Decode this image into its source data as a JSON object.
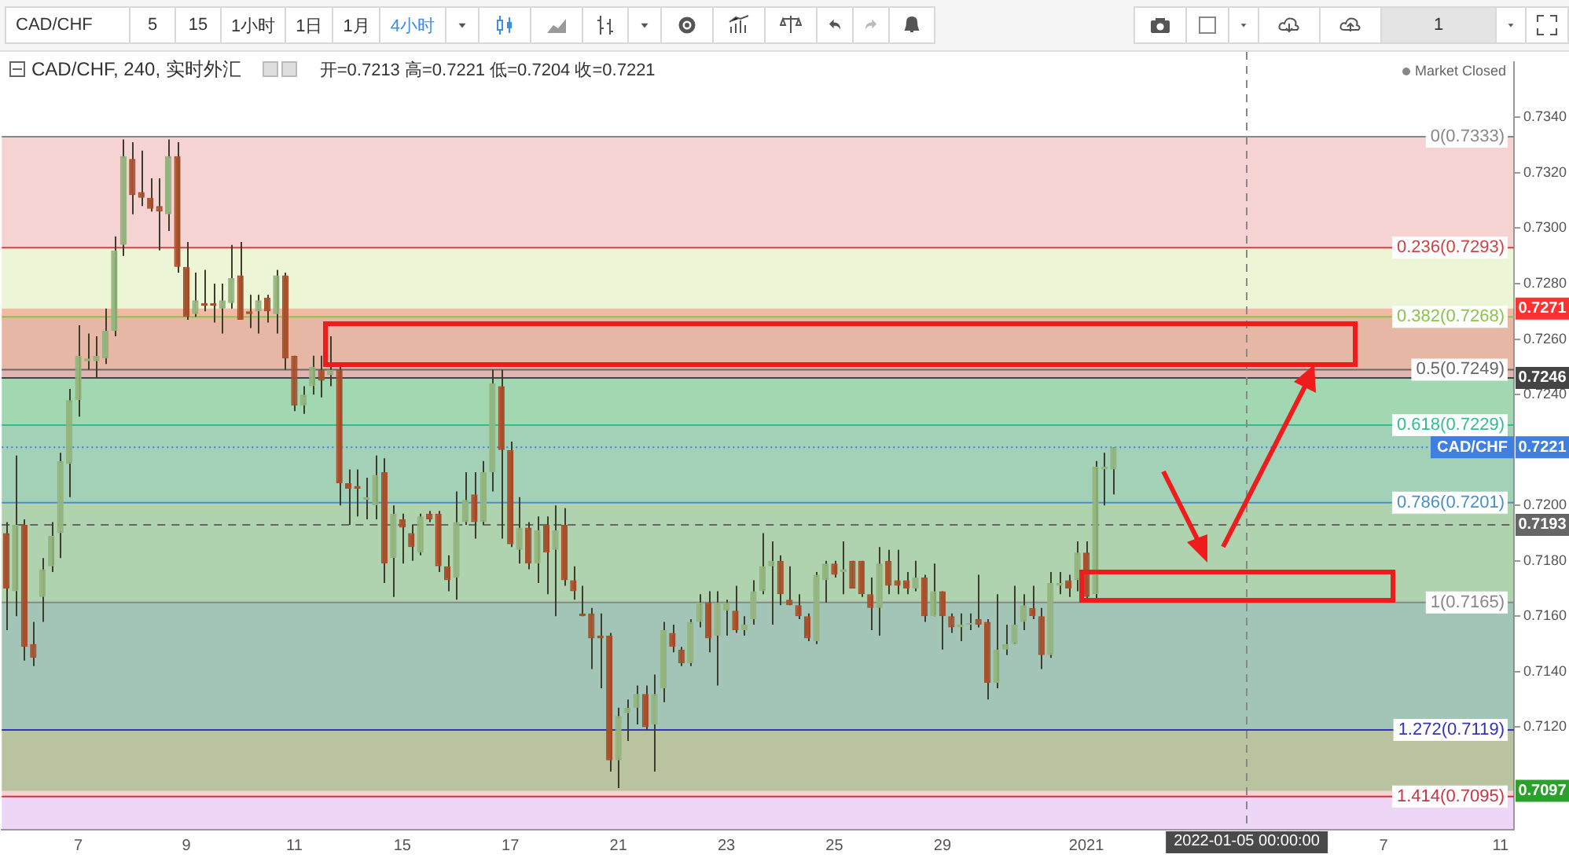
{
  "chart_data": {
    "type": "candlestick",
    "title": "CAD/CHF, 240, 实时外汇",
    "subtitle": "开=0.7213 高=0.7221 低=0.7204 收=0.7221",
    "annotations": [
      "CAD/CHF",
      "5",
      "15",
      "1小时",
      "1日",
      "1月",
      "4小时",
      "1",
      "Market Closed",
      "2022-01-05 00:00:00",
      {
        "text": "0.7271",
        "y": 0.7271
      },
      {
        "text": "0.7246",
        "y": 0.7246
      },
      {
        "text": "0.7221",
        "y": 0.7221
      },
      {
        "text": "CAD/CHF",
        "y": 0.7221
      },
      {
        "text": "0.7193",
        "y": 0.7193
      },
      {
        "text": "0.7097",
        "y": 0.7097
      }
    ],
    "categories": [
      null,
      null,
      null,
      null,
      null,
      null,
      null,
      null,
      "7",
      null,
      null,
      null,
      null,
      null,
      null,
      null,
      null,
      null,
      null,
      null,
      "9",
      null,
      null,
      null,
      null,
      null,
      null,
      null,
      null,
      null,
      null,
      null,
      "11",
      null,
      null,
      null,
      null,
      null,
      null,
      null,
      null,
      null,
      null,
      null,
      "15",
      null,
      null,
      null,
      null,
      null,
      null,
      null,
      null,
      null,
      null,
      null,
      "17",
      null,
      null,
      null,
      null,
      null,
      null,
      null,
      null,
      null,
      null,
      null,
      "21",
      null,
      null,
      null,
      null,
      null,
      null,
      null,
      null,
      null,
      null,
      null,
      "23",
      null,
      null,
      null,
      null,
      null,
      null,
      null,
      null,
      null,
      null,
      null,
      "25",
      null,
      null,
      null,
      null,
      null,
      null,
      null,
      null,
      null,
      null,
      null,
      "29",
      null,
      null,
      null,
      null,
      null,
      null,
      null,
      null,
      null,
      null,
      null,
      null,
      null,
      null,
      null,
      "2021",
      null,
      null,
      null,
      null,
      null,
      null,
      null,
      null,
      null,
      null,
      null,
      null,
      null,
      null,
      null,
      null,
      null,
      null,
      null,
      null,
      null,
      null,
      null,
      null,
      null,
      null,
      null,
      null,
      null,
      null,
      null,
      null,
      "7",
      null,
      null,
      null,
      null,
      null,
      null,
      null,
      null,
      null,
      null,
      null,
      null,
      "11",
      null
    ],
    "ohlc": [
      [
        0.719,
        0.7194,
        0.7155,
        0.717
      ],
      [
        0.7169,
        0.7218,
        0.716,
        0.7193
      ],
      [
        0.7193,
        0.7195,
        0.7144,
        0.7149
      ],
      [
        0.715,
        0.7158,
        0.7142,
        0.7145
      ],
      [
        0.7167,
        0.7181,
        0.7158,
        0.7177
      ],
      [
        0.7178,
        0.7194,
        0.7176,
        0.7189
      ],
      [
        0.719,
        0.7219,
        0.7181,
        0.7216
      ],
      [
        0.7215,
        0.7242,
        0.7203,
        0.7238
      ],
      [
        0.7238,
        0.7265,
        0.7232,
        0.7254
      ],
      [
        0.7252,
        0.7262,
        0.7249,
        0.7253
      ],
      [
        0.7252,
        0.7261,
        0.7246,
        0.7254
      ],
      [
        0.7253,
        0.7271,
        0.7251,
        0.7263
      ],
      [
        0.7263,
        0.7297,
        0.7261,
        0.7292
      ],
      [
        0.7294,
        0.7332,
        0.729,
        0.7326
      ],
      [
        0.7325,
        0.7331,
        0.7305,
        0.7312
      ],
      [
        0.7313,
        0.7328,
        0.7308,
        0.7311
      ],
      [
        0.7311,
        0.7318,
        0.7306,
        0.7307
      ],
      [
        0.7308,
        0.7318,
        0.7292,
        0.7306
      ],
      [
        0.7305,
        0.7332,
        0.7299,
        0.7326
      ],
      [
        0.7326,
        0.7331,
        0.7284,
        0.7286
      ],
      [
        0.7286,
        0.7295,
        0.7267,
        0.7268
      ],
      [
        0.7269,
        0.7284,
        0.7268,
        0.7274
      ],
      [
        0.7273,
        0.7285,
        0.727,
        0.7272
      ],
      [
        0.7273,
        0.728,
        0.7266,
        0.7272
      ],
      [
        0.7271,
        0.728,
        0.7262,
        0.7274
      ],
      [
        0.7273,
        0.7294,
        0.7271,
        0.7282
      ],
      [
        0.7283,
        0.7295,
        0.7267,
        0.7267
      ],
      [
        0.727,
        0.7276,
        0.7264,
        0.7269
      ],
      [
        0.727,
        0.7276,
        0.7262,
        0.7274
      ],
      [
        0.7275,
        0.7276,
        0.7266,
        0.727
      ],
      [
        0.7269,
        0.7285,
        0.7262,
        0.7283
      ],
      [
        0.7283,
        0.7284,
        0.7249,
        0.7253
      ],
      [
        0.7254,
        0.7254,
        0.7234,
        0.7236
      ],
      [
        0.7236,
        0.7243,
        0.7233,
        0.724
      ],
      [
        0.7243,
        0.7254,
        0.724,
        0.725
      ],
      [
        0.7249,
        0.7254,
        0.7239,
        0.7245
      ],
      [
        0.7247,
        0.7261,
        0.7243,
        0.7249
      ],
      [
        0.7249,
        0.725,
        0.72,
        0.7208
      ],
      [
        0.7208,
        0.7213,
        0.7193,
        0.7206
      ],
      [
        0.7207,
        0.7213,
        0.7196,
        0.7206
      ],
      [
        0.7202,
        0.721,
        0.7195,
        0.7203
      ],
      [
        0.72,
        0.7218,
        0.7195,
        0.7211
      ],
      [
        0.7212,
        0.7217,
        0.7172,
        0.7179
      ],
      [
        0.7181,
        0.72,
        0.7167,
        0.7197
      ],
      [
        0.7195,
        0.7197,
        0.7179,
        0.7192
      ],
      [
        0.719,
        0.7193,
        0.718,
        0.7185
      ],
      [
        0.7183,
        0.7197,
        0.7182,
        0.7196
      ],
      [
        0.7197,
        0.7198,
        0.7194,
        0.7195
      ],
      [
        0.7197,
        0.7198,
        0.7176,
        0.7178
      ],
      [
        0.7178,
        0.7182,
        0.7169,
        0.7173
      ],
      [
        0.7174,
        0.7205,
        0.7166,
        0.7194
      ],
      [
        0.7194,
        0.7212,
        0.7193,
        0.7202
      ],
      [
        0.7204,
        0.7212,
        0.7188,
        0.7194
      ],
      [
        0.7194,
        0.7216,
        0.7193,
        0.7212
      ],
      [
        0.7212,
        0.7249,
        0.7205,
        0.7244
      ],
      [
        0.7243,
        0.7249,
        0.7188,
        0.722
      ],
      [
        0.722,
        0.7223,
        0.7185,
        0.7186
      ],
      [
        0.7184,
        0.7203,
        0.7179,
        0.7192
      ],
      [
        0.7192,
        0.7194,
        0.7177,
        0.7179
      ],
      [
        0.7179,
        0.7196,
        0.7172,
        0.7191
      ],
      [
        0.7193,
        0.7196,
        0.7168,
        0.7183
      ],
      [
        0.7184,
        0.72,
        0.716,
        0.7191
      ],
      [
        0.7193,
        0.7199,
        0.7171,
        0.7173
      ],
      [
        0.7173,
        0.7178,
        0.7166,
        0.7169
      ],
      [
        0.7161,
        0.7171,
        0.716,
        0.716
      ],
      [
        0.7161,
        0.7163,
        0.7141,
        0.7152
      ],
      [
        0.7153,
        0.7161,
        0.7134,
        0.7152
      ],
      [
        0.7153,
        0.7154,
        0.7104,
        0.7108
      ],
      [
        0.7108,
        0.7127,
        0.7098,
        0.7124
      ],
      [
        0.7125,
        0.713,
        0.7115,
        0.7127
      ],
      [
        0.7127,
        0.7135,
        0.7121,
        0.7132
      ],
      [
        0.7132,
        0.7135,
        0.7119,
        0.712
      ],
      [
        0.7121,
        0.7139,
        0.7104,
        0.7132
      ],
      [
        0.7134,
        0.7158,
        0.7129,
        0.7155
      ],
      [
        0.7154,
        0.7157,
        0.7147,
        0.7149
      ],
      [
        0.7148,
        0.7149,
        0.7142,
        0.7143
      ],
      [
        0.7143,
        0.7159,
        0.7142,
        0.7158
      ],
      [
        0.7158,
        0.7168,
        0.7156,
        0.7165
      ],
      [
        0.7165,
        0.7169,
        0.7147,
        0.7152
      ],
      [
        0.7153,
        0.7169,
        0.7135,
        0.7165
      ],
      [
        0.7162,
        0.7166,
        0.7153,
        0.7165
      ],
      [
        0.7162,
        0.7171,
        0.7154,
        0.7155
      ],
      [
        0.7155,
        0.716,
        0.7153,
        0.7157
      ],
      [
        0.7159,
        0.7173,
        0.7157,
        0.7169
      ],
      [
        0.7169,
        0.719,
        0.7168,
        0.7178
      ],
      [
        0.7178,
        0.7187,
        0.7157,
        0.718
      ],
      [
        0.718,
        0.7182,
        0.7164,
        0.7168
      ],
      [
        0.7166,
        0.7178,
        0.7164,
        0.7164
      ],
      [
        0.7164,
        0.7168,
        0.7159,
        0.716
      ],
      [
        0.716,
        0.7161,
        0.7151,
        0.7152
      ],
      [
        0.7151,
        0.7176,
        0.715,
        0.7175
      ],
      [
        0.7173,
        0.718,
        0.7165,
        0.7179
      ],
      [
        0.7179,
        0.718,
        0.7174,
        0.7175
      ],
      [
        0.7176,
        0.7187,
        0.7168,
        0.7177
      ],
      [
        0.718,
        0.718,
        0.717,
        0.717
      ],
      [
        0.718,
        0.718,
        0.7167,
        0.7168
      ],
      [
        0.7168,
        0.7174,
        0.7155,
        0.7163
      ],
      [
        0.7163,
        0.7185,
        0.7153,
        0.7179
      ],
      [
        0.718,
        0.7184,
        0.7168,
        0.7171
      ],
      [
        0.7173,
        0.7184,
        0.7168,
        0.7171
      ],
      [
        0.7173,
        0.7176,
        0.7168,
        0.717
      ],
      [
        0.717,
        0.718,
        0.7169,
        0.7174
      ],
      [
        0.7174,
        0.7175,
        0.7158,
        0.716
      ],
      [
        0.716,
        0.7179,
        0.716,
        0.7169
      ],
      [
        0.7169,
        0.7169,
        0.7148,
        0.716
      ],
      [
        0.716,
        0.7161,
        0.7154,
        0.7156
      ],
      [
        0.7156,
        0.7161,
        0.7151,
        0.7157
      ],
      [
        0.7157,
        0.7161,
        0.7155,
        0.7157
      ],
      [
        0.7159,
        0.7175,
        0.7156,
        0.7157
      ],
      [
        0.7158,
        0.7159,
        0.713,
        0.7136
      ],
      [
        0.7136,
        0.7168,
        0.7134,
        0.7148
      ],
      [
        0.7148,
        0.7157,
        0.7146,
        0.715
      ],
      [
        0.715,
        0.7171,
        0.715,
        0.7157
      ],
      [
        0.7158,
        0.7168,
        0.7155,
        0.7164
      ],
      [
        0.7163,
        0.7171,
        0.7159,
        0.716
      ],
      [
        0.716,
        0.7163,
        0.7141,
        0.7146
      ],
      [
        0.7146,
        0.7176,
        0.7145,
        0.7172
      ],
      [
        0.7171,
        0.7176,
        0.7168,
        0.7172
      ],
      [
        0.7173,
        0.7175,
        0.7167,
        0.717
      ],
      [
        0.7173,
        0.7187,
        0.7169,
        0.7183
      ],
      [
        0.7183,
        0.7187,
        0.7165,
        0.7167
      ],
      [
        0.7168,
        0.7216,
        0.7165,
        0.7214
      ],
      [
        0.7213,
        0.7219,
        0.72,
        0.7214
      ],
      [
        0.7213,
        0.7221,
        0.7204,
        0.7221
      ],
      null,
      null,
      null,
      null,
      null,
      null,
      null,
      null,
      null,
      null,
      null,
      null,
      null,
      null,
      null,
      null,
      null,
      null,
      null,
      null,
      null,
      null,
      null,
      null,
      null,
      null,
      null,
      null,
      null,
      null,
      null,
      null,
      null,
      null,
      null,
      null,
      null,
      null,
      null,
      null,
      null,
      null,
      null,
      null
    ],
    "colors": [
      "#a8502c",
      "#93b47c",
      "#a8502c",
      "#a8502c",
      "#93b47c",
      "#93b47c",
      "#93b47c",
      "#93b47c",
      "#93b47c",
      "#93b47c",
      "#93b47c",
      "#93b47c",
      "#93b47c",
      "#93b47c",
      "#a8502c",
      "#a8502c",
      "#a8502c",
      "#a8502c",
      "#93b47c",
      "#a8502c",
      "#a8502c",
      "#93b47c",
      "#a8502c",
      "#a8502c",
      "#93b47c",
      "#93b47c",
      "#a8502c",
      "#a8502c",
      "#93b47c",
      "#a8502c",
      "#93b47c",
      "#a8502c",
      "#a8502c",
      "#93b47c",
      "#93b47c",
      "#a8502c",
      "#93b47c",
      "#a8502c",
      "#a8502c",
      "#a8502c",
      "#93b47c",
      "#93b47c",
      "#a8502c",
      "#93b47c",
      "#a8502c",
      "#a8502c",
      "#93b47c",
      "#a8502c",
      "#a8502c",
      "#a8502c",
      "#93b47c",
      "#93b47c",
      "#a8502c",
      "#93b47c",
      "#93b47c",
      "#a8502c",
      "#a8502c",
      "#93b47c",
      "#a8502c",
      "#93b47c",
      "#a8502c",
      "#93b47c",
      "#a8502c",
      "#a8502c",
      "#a8502c",
      "#a8502c",
      "#a8502c",
      "#a8502c",
      "#93b47c",
      "#93b47c",
      "#93b47c",
      "#a8502c",
      "#93b47c",
      "#93b47c",
      "#a8502c",
      "#a8502c",
      "#93b47c",
      "#93b47c",
      "#a8502c",
      "#93b47c",
      "#93b47c",
      "#a8502c",
      "#93b47c",
      "#93b47c",
      "#93b47c",
      "#93b47c",
      "#a8502c",
      "#a8502c",
      "#a8502c",
      "#a8502c",
      "#93b47c",
      "#93b47c",
      "#a8502c",
      "#93b47c",
      "#a8502c",
      "#a8502c",
      "#a8502c",
      "#93b47c",
      "#a8502c",
      "#a8502c",
      "#a8502c",
      "#93b47c",
      "#a8502c",
      "#93b47c",
      "#a8502c",
      "#a8502c",
      "#93b47c",
      "#93b47c",
      "#a8502c",
      "#a8502c",
      "#93b47c",
      "#93b47c",
      "#93b47c",
      "#93b47c",
      "#a8502c",
      "#a8502c",
      "#93b47c",
      "#93b47c",
      "#a8502c",
      "#93b47c",
      "#a8502c",
      "#93b47c",
      "#93b47c",
      "#93b47c",
      null,
      null,
      null,
      null,
      null,
      null,
      null,
      null,
      null,
      null,
      null,
      null,
      null,
      null,
      null,
      null,
      null,
      null,
      null,
      null,
      null,
      null,
      null,
      null,
      null,
      null,
      null,
      null,
      null,
      null,
      null,
      null,
      null,
      null,
      null,
      null,
      null,
      null,
      null,
      null,
      null,
      null,
      null,
      null
    ],
    "ylim": [
      0.7083,
      0.736
    ],
    "yticks": [
      {
        "value": 0.734,
        "label": "0.7340"
      },
      {
        "value": 0.732,
        "label": "0.7320"
      },
      {
        "value": 0.73,
        "label": "0.7300"
      },
      {
        "value": 0.728,
        "label": "0.7280"
      },
      {
        "value": 0.726,
        "label": "0.7260"
      },
      {
        "value": 0.724,
        "label": "0.7240"
      },
      {
        "value": 0.72,
        "label": "0.7200"
      },
      {
        "value": 0.718,
        "label": "0.7180"
      },
      {
        "value": 0.716,
        "label": "0.7160"
      },
      {
        "value": 0.714,
        "label": "0.7140"
      },
      {
        "value": 0.712,
        "label": "0.7120"
      }
    ],
    "bands": [
      {
        "axis": "y",
        "from": 0.7293,
        "to": 0.7333,
        "color": "#e06d6d"
      },
      {
        "axis": "y",
        "from": 0.7268,
        "to": 0.7293,
        "color": "#c0dd76"
      },
      {
        "axis": "y",
        "from": 0.7249,
        "to": 0.7268,
        "color": "#8ad47e"
      },
      {
        "axis": "y",
        "from": 0.7229,
        "to": 0.7249,
        "color": "#70cfbd"
      },
      {
        "axis": "y",
        "from": 0.7201,
        "to": 0.7229,
        "color": "#7cafdb"
      },
      {
        "axis": "y",
        "from": 0.7165,
        "to": 0.7201,
        "color": "#b5b5b5"
      },
      {
        "axis": "y",
        "from": 0.7119,
        "to": 0.7165,
        "color": "#7676df"
      },
      {
        "axis": "y",
        "from": 0.7095,
        "to": 0.7119,
        "color": "#e06d6d"
      },
      {
        "axis": "y",
        "from": 0.7083,
        "to": 0.7095,
        "color": "#c378e1"
      },
      {
        "axis": "y",
        "from": 0.7246,
        "to": 0.7271,
        "color": "#ff3030"
      },
      {
        "axis": "y",
        "from": 0.7097,
        "to": 0.7246,
        "color": "#2ca02c"
      }
    ],
    "ref_lines": [
      {
        "axis": "y",
        "value": 0.7333,
        "label": "0(0.7333)",
        "color": "#888888"
      },
      {
        "axis": "y",
        "value": 0.7293,
        "label": "0.236(0.7293)",
        "color": "#cc4444"
      },
      {
        "axis": "y",
        "value": 0.7268,
        "label": "0.382(0.7268)",
        "color": "#8bc34a"
      },
      {
        "axis": "y",
        "value": 0.7249,
        "label": "0.5(0.7249)",
        "color": "#666666"
      },
      {
        "axis": "y",
        "value": 0.7229,
        "label": "0.618(0.7229)",
        "color": "#2fbf8f"
      },
      {
        "axis": "y",
        "value": 0.7201,
        "label": "0.786(0.7201)",
        "color": "#4a90c8"
      },
      {
        "axis": "y",
        "value": 0.7165,
        "label": "1(0.7165)",
        "color": "#888888"
      },
      {
        "axis": "y",
        "value": 0.7119,
        "label": "1.272(0.7119)",
        "color": "#3333bb"
      },
      {
        "axis": "y",
        "value": 0.7095,
        "label": "1.414(0.7095)",
        "color": "#cc3344"
      },
      {
        "axis": "y",
        "value": 0.7246,
        "color": "#444444"
      },
      {
        "axis": "y",
        "value": 0.7221,
        "color": "#3f7fe0",
        "line_style": "dotted"
      },
      {
        "axis": "y",
        "value": 0.7193,
        "color": "#666666",
        "line_style": "dashed"
      }
    ]
  }
}
